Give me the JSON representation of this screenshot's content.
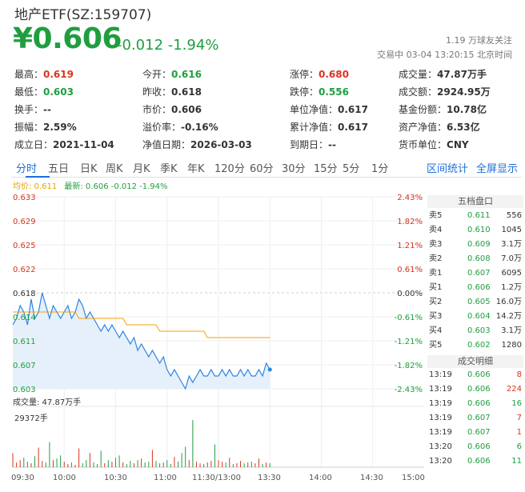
{
  "header": {
    "title": "地产ETF(SZ:159707)",
    "price": "¥0.606",
    "change": "-0.012 -1.94%",
    "follow": "1.19 万球友关注",
    "status": "交易中 03-04 13:20:15 北京时间"
  },
  "stats": [
    [
      {
        "label": "最高：",
        "value": "0.619",
        "color": "red"
      },
      {
        "label": "今开：",
        "value": "0.616",
        "color": "green"
      },
      {
        "label": "涨停：",
        "value": "0.680",
        "color": "red"
      },
      {
        "label": "成交量：",
        "value": "47.87万手",
        "color": ""
      }
    ],
    [
      {
        "label": "最低：",
        "value": "0.603",
        "color": "green"
      },
      {
        "label": "昨收：",
        "value": "0.618",
        "color": ""
      },
      {
        "label": "跌停：",
        "value": "0.556",
        "color": "green"
      },
      {
        "label": "成交额：",
        "value": "2924.95万",
        "color": ""
      }
    ],
    [
      {
        "label": "换手：",
        "value": "--",
        "color": ""
      },
      {
        "label": "市价：",
        "value": "0.606",
        "color": ""
      },
      {
        "label": "单位净值：",
        "value": "0.617",
        "color": ""
      },
      {
        "label": "基金份额：",
        "value": "10.78亿",
        "color": ""
      }
    ],
    [
      {
        "label": "振幅：",
        "value": "2.59%",
        "color": ""
      },
      {
        "label": "溢价率：",
        "value": "-0.16%",
        "color": ""
      },
      {
        "label": "累计净值：",
        "value": "0.617",
        "color": ""
      },
      {
        "label": "资产净值：",
        "value": "6.53亿",
        "color": ""
      }
    ],
    [
      {
        "label": "成立日：",
        "value": "2021-11-04",
        "color": ""
      },
      {
        "label": "净值日期：",
        "value": "2026-03-03",
        "color": ""
      },
      {
        "label": "到期日：",
        "value": "--",
        "color": ""
      },
      {
        "label": "货币单位：",
        "value": "CNY",
        "color": ""
      }
    ]
  ],
  "tabs": [
    "分时",
    "五日",
    "日K",
    "周K",
    "月K",
    "季K",
    "年K",
    "120分",
    "60分",
    "30分",
    "15分",
    "5分",
    "1分"
  ],
  "tab_actions": {
    "stats": "区间统计",
    "fullscreen": "全屏显示"
  },
  "legend": {
    "avg": "均价: 0.611",
    "latest": "最新: 0.606 -0.012 -1.94%"
  },
  "y_left": [
    "0.633",
    "0.629",
    "0.625",
    "0.622",
    "0.618",
    "0.614",
    "0.611",
    "0.607",
    "0.603"
  ],
  "y_right": [
    "2.43%",
    "1.82%",
    "1.21%",
    "0.61%",
    "0.00%",
    "-0.61%",
    "-1.21%",
    "-1.82%",
    "-2.43%"
  ],
  "volume": {
    "label": "成交量: 47.87万手",
    "max": "29372手"
  },
  "x_labels": [
    "09:30",
    "10:00",
    "10:30",
    "11:00",
    "11:30/13:00",
    "13:30",
    "14:00",
    "14:30",
    "15:00"
  ],
  "order_book": {
    "title": "五档盘口",
    "rows": [
      {
        "label": "卖5",
        "price": "0.611",
        "qty": "556"
      },
      {
        "label": "卖4",
        "price": "0.610",
        "qty": "1045"
      },
      {
        "label": "卖3",
        "price": "0.609",
        "qty": "3.1万"
      },
      {
        "label": "卖2",
        "price": "0.608",
        "qty": "7.0万"
      },
      {
        "label": "卖1",
        "price": "0.607",
        "qty": "6095"
      },
      {
        "label": "买1",
        "price": "0.606",
        "qty": "1.2万"
      },
      {
        "label": "买2",
        "price": "0.605",
        "qty": "16.0万"
      },
      {
        "label": "买3",
        "price": "0.604",
        "qty": "14.2万"
      },
      {
        "label": "买4",
        "price": "0.603",
        "qty": "3.1万"
      },
      {
        "label": "买5",
        "price": "0.602",
        "qty": "1280"
      }
    ]
  },
  "trades": {
    "title": "成交明细",
    "rows": [
      {
        "time": "13:19",
        "price": "0.606",
        "qty": "8",
        "dir": "red"
      },
      {
        "time": "13:19",
        "price": "0.606",
        "qty": "224",
        "dir": "red"
      },
      {
        "time": "13:19",
        "price": "0.606",
        "qty": "16",
        "dir": "green"
      },
      {
        "time": "13:19",
        "price": "0.607",
        "qty": "7",
        "dir": "red"
      },
      {
        "time": "13:19",
        "price": "0.607",
        "qty": "1",
        "dir": "red"
      },
      {
        "time": "13:20",
        "price": "0.606",
        "qty": "6",
        "dir": "green"
      },
      {
        "time": "13:20",
        "price": "0.606",
        "qty": "11",
        "dir": "green"
      }
    ]
  },
  "chart_data": {
    "type": "line",
    "prev_close": 0.618,
    "ylim": [
      0.603,
      0.633
    ],
    "price": [
      0.613,
      0.614,
      0.616,
      0.615,
      0.613,
      0.617,
      0.614,
      0.615,
      0.618,
      0.616,
      0.614,
      0.616,
      0.615,
      0.614,
      0.615,
      0.616,
      0.614,
      0.615,
      0.617,
      0.616,
      0.614,
      0.615,
      0.614,
      0.613,
      0.612,
      0.613,
      0.612,
      0.613,
      0.612,
      0.611,
      0.612,
      0.611,
      0.61,
      0.611,
      0.609,
      0.61,
      0.609,
      0.608,
      0.609,
      0.608,
      0.607,
      0.608,
      0.606,
      0.605,
      0.606,
      0.605,
      0.604,
      0.603,
      0.605,
      0.604,
      0.605,
      0.606,
      0.605,
      0.605,
      0.606,
      0.605,
      0.605,
      0.606,
      0.605,
      0.606,
      0.605,
      0.605,
      0.606,
      0.605,
      0.606,
      0.605,
      0.605,
      0.606,
      0.605,
      0.607,
      0.606
    ],
    "avg": [
      0.615,
      0.615,
      0.615,
      0.615,
      0.615,
      0.615,
      0.615,
      0.615,
      0.615,
      0.615,
      0.615,
      0.615,
      0.615,
      0.615,
      0.615,
      0.615,
      0.615,
      0.615,
      0.614,
      0.614,
      0.614,
      0.614,
      0.614,
      0.614,
      0.614,
      0.614,
      0.614,
      0.614,
      0.614,
      0.614,
      0.614,
      0.613,
      0.613,
      0.613,
      0.613,
      0.613,
      0.613,
      0.613,
      0.613,
      0.613,
      0.612,
      0.612,
      0.612,
      0.612,
      0.612,
      0.612,
      0.612,
      0.612,
      0.612,
      0.612,
      0.612,
      0.612,
      0.612,
      0.611,
      0.611,
      0.611,
      0.611,
      0.611,
      0.611,
      0.611,
      0.611,
      0.611,
      0.611,
      0.611,
      0.611,
      0.611,
      0.611,
      0.611,
      0.611,
      0.611,
      0.611
    ],
    "volume": [
      1800,
      600,
      900,
      1200,
      700,
      500,
      1400,
      2500,
      800,
      600,
      3200,
      900,
      1100,
      1500,
      700,
      400,
      600,
      300,
      2400,
      500,
      900,
      1800,
      600,
      400,
      2100,
      500,
      900,
      700,
      1200,
      1500,
      600,
      400,
      800,
      500,
      900,
      1100,
      600,
      700,
      2200,
      800,
      500,
      600,
      900,
      400,
      1300,
      700,
      1800,
      2600,
      900,
      6000,
      700,
      500,
      400,
      600,
      800,
      2900,
      900,
      700,
      600,
      1200,
      400,
      500,
      800,
      500,
      600,
      700,
      500,
      1100,
      400,
      600,
      500
    ],
    "volume_max": 29372
  }
}
